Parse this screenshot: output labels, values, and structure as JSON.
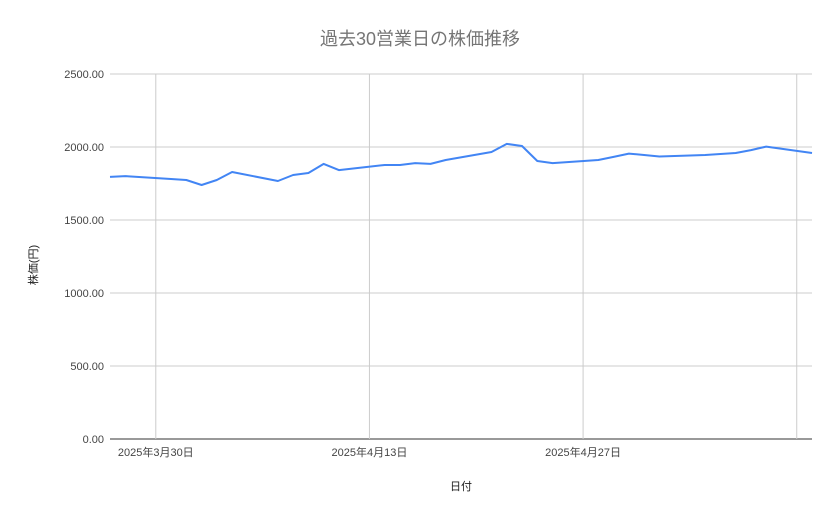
{
  "chart_data": {
    "type": "line",
    "title": "過去30営業日の株価推移",
    "xlabel": "日付",
    "ylabel": "株価(円)",
    "ylim": [
      0,
      2500
    ],
    "xlim": [
      "2025-03-27",
      "2025-05-12"
    ],
    "yticks": [
      "0.00",
      "500.00",
      "1000.00",
      "1500.00",
      "2000.00",
      "2500.00"
    ],
    "xticks": [
      {
        "date": "2025-03-30",
        "label": "2025年3月30日"
      },
      {
        "date": "2025-04-13",
        "label": "2025年4月13日"
      },
      {
        "date": "2025-04-27",
        "label": "2025年4月27日"
      },
      {
        "date": "2025-05-11",
        "label": ""
      }
    ],
    "grid": true,
    "legend": "none",
    "line_color": "#4285f4",
    "series": [
      {
        "x": [
          "2025-03-27",
          "2025-03-28",
          "2025-03-31",
          "2025-04-01",
          "2025-04-02",
          "2025-04-03",
          "2025-04-04",
          "2025-04-07",
          "2025-04-08",
          "2025-04-09",
          "2025-04-10",
          "2025-04-11",
          "2025-04-14",
          "2025-04-15",
          "2025-04-16",
          "2025-04-17",
          "2025-04-18",
          "2025-04-21",
          "2025-04-22",
          "2025-04-23",
          "2025-04-24",
          "2025-04-25",
          "2025-04-28",
          "2025-04-29",
          "2025-04-30",
          "2025-05-01",
          "2025-05-02",
          "2025-05-05",
          "2025-05-06",
          "2025-05-07",
          "2025-05-08",
          "2025-05-09",
          "2025-05-12"
        ],
        "values": [
          1795,
          1801,
          1781,
          1774,
          1740,
          1774,
          1829,
          1767,
          1808,
          1822,
          1884,
          1842,
          1877,
          1877,
          1890,
          1884,
          1911,
          1966,
          2021,
          2007,
          1904,
          1890,
          1911,
          1932,
          1955,
          1945,
          1935,
          1945,
          1952,
          1959,
          1979,
          2003,
          1959
        ]
      }
    ]
  }
}
